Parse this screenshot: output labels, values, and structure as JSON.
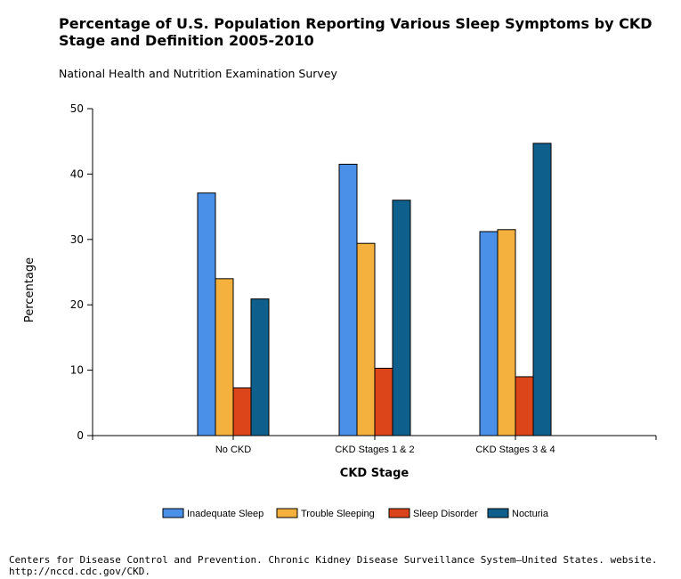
{
  "title": "Percentage of U.S. Population Reporting Various Sleep Symptoms by CKD Stage and Definition 2005-2010",
  "subtitle": "National Health and Nutrition Examination Survey",
  "source": "Centers for Disease Control and Prevention. Chronic Kidney Disease Surveillance System—United States. website. http://nccd.cdc.gov/CKD.",
  "chart_data": {
    "type": "bar",
    "title": "Percentage of U.S. Population Reporting Various Sleep Symptoms by CKD Stage and Definition 2005-2010",
    "subtitle": "National Health and Nutrition Examination Survey",
    "xlabel": "CKD Stage",
    "ylabel": "Percentage",
    "ylim": [
      0,
      50
    ],
    "yticks": [
      "0",
      "10",
      "20",
      "30",
      "40",
      "50"
    ],
    "grid": false,
    "legend_position": "bottom",
    "categories": [
      "No CKD",
      "CKD Stages 1 & 2",
      "CKD Stages 3 & 4"
    ],
    "series": [
      {
        "name": "Inadequate Sleep",
        "color": "#4a90e8",
        "values": [
          37.1,
          41.5,
          31.2
        ]
      },
      {
        "name": "Trouble Sleeping",
        "color": "#f5b13d",
        "values": [
          24.0,
          29.4,
          31.5
        ]
      },
      {
        "name": "Sleep Disorder",
        "color": "#dc4519",
        "values": [
          7.3,
          10.3,
          9.0
        ]
      },
      {
        "name": "Nocturia",
        "color": "#0f5f8c",
        "values": [
          20.9,
          36.0,
          44.7
        ]
      }
    ]
  }
}
